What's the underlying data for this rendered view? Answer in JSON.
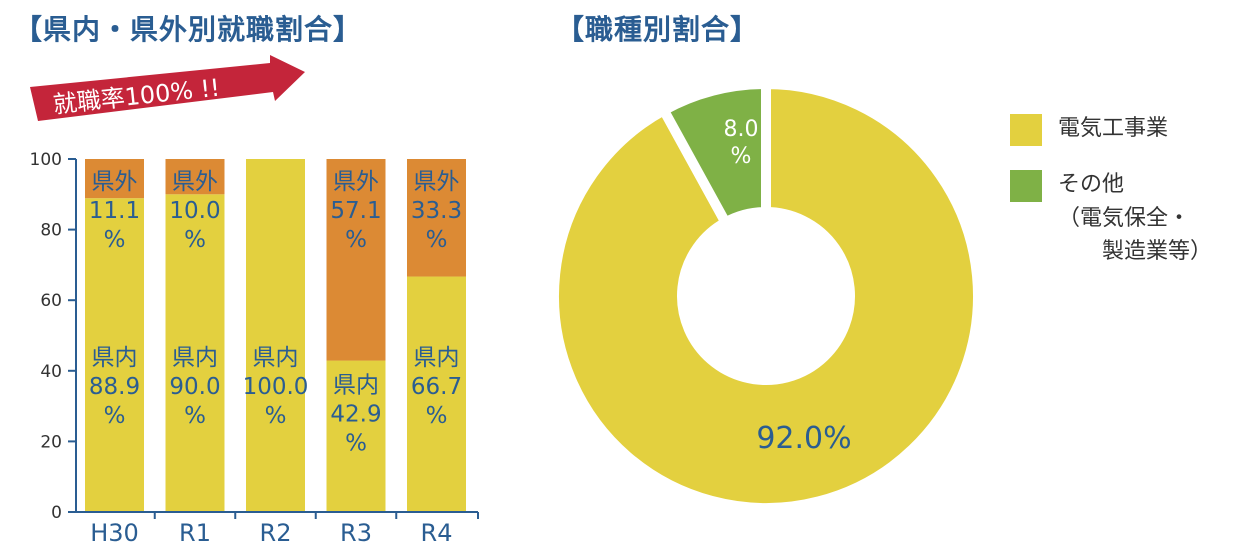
{
  "titles": {
    "left": "【県内・県外別就職割合】",
    "right": "【職種別割合】"
  },
  "banner": {
    "text": "就職率100% !!"
  },
  "colors": {
    "title": "#2a5d92",
    "in_pref": "#e3d03f",
    "out_pref": "#dc8a34",
    "other": "#7fb146",
    "banner": "#c4253a",
    "axis": "#2a5d92",
    "label": "#2a5d92"
  },
  "legend": {
    "items": [
      {
        "label": "電気工事業"
      },
      {
        "label": "その他",
        "sub": [
          "（電気保全・",
          "製造業等）"
        ]
      }
    ]
  },
  "chart_data": [
    {
      "type": "bar",
      "stacked": true,
      "categories": [
        "H30",
        "R1",
        "R2",
        "R3",
        "R4"
      ],
      "series": [
        {
          "name": "県内",
          "values": [
            88.9,
            90.0,
            100.0,
            42.9,
            66.7
          ]
        },
        {
          "name": "県外",
          "values": [
            11.1,
            10.0,
            0,
            57.1,
            33.3
          ]
        }
      ],
      "ylim": [
        0,
        100
      ],
      "yticks": [
        0,
        20,
        40,
        60,
        80,
        100
      ],
      "data_labels": [
        {
          "in": [
            "県内",
            "88.9",
            "%"
          ],
          "out": [
            "県外",
            "11.1",
            "%"
          ]
        },
        {
          "in": [
            "県内",
            "90.0",
            "%"
          ],
          "out": [
            "県外",
            "10.0",
            "%"
          ]
        },
        {
          "in": [
            "県内",
            "100.0",
            "%"
          ],
          "out": null
        },
        {
          "in": [
            "県内",
            "42.9",
            "%"
          ],
          "out": [
            "県外",
            "57.1",
            "%"
          ]
        },
        {
          "in": [
            "県内",
            "66.7",
            "%"
          ],
          "out": [
            "県外",
            "33.3",
            "%"
          ]
        }
      ]
    },
    {
      "type": "pie",
      "donut": true,
      "slices": [
        {
          "name": "電気工事業",
          "value": 92.0,
          "label": [
            "92.0%"
          ]
        },
        {
          "name": "その他",
          "value": 8.0,
          "label": [
            "8.0",
            "%"
          ]
        }
      ]
    }
  ]
}
